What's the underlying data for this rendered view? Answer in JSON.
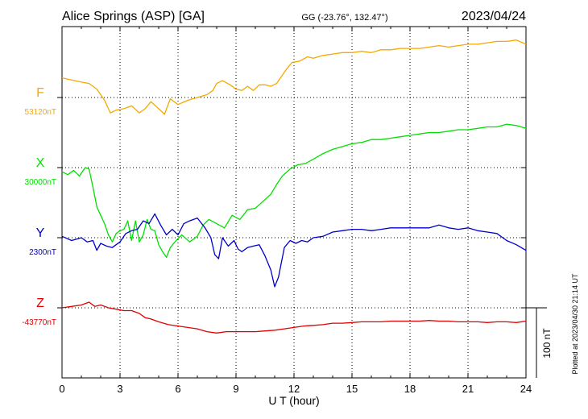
{
  "header": {
    "station": "Alice Springs (ASP)  [GA]",
    "coords": "GG (-23.76°, 132.47°)",
    "date": "2023/04/24"
  },
  "footer": {
    "xlabel": "U T (hour)",
    "plotted": "Plotted at 2023/04/30 21:14 UT"
  },
  "scale_bar": {
    "label": "100 nT",
    "value": 100
  },
  "chart_data": {
    "type": "line",
    "title": "Alice Springs (ASP)  [GA]",
    "xlabel": "U T (hour)",
    "ylabel": "",
    "xlim": [
      0,
      24
    ],
    "x_ticks": [
      "0",
      "3",
      "6",
      "9",
      "12",
      "15",
      "18",
      "21",
      "24"
    ],
    "grid": true,
    "colors": {
      "F": "#f5a800",
      "X": "#00e000",
      "Y": "#0000cc",
      "Z": "#e00000"
    },
    "series": [
      {
        "name": "F",
        "baseline_label": "53120nT",
        "x": [
          0,
          0.5,
          1.0,
          1.4,
          1.8,
          2.2,
          2.5,
          2.8,
          3.2,
          3.6,
          4.0,
          4.3,
          4.6,
          5.0,
          5.3,
          5.6,
          6.0,
          6.5,
          7.0,
          7.5,
          7.8,
          8.0,
          8.3,
          8.7,
          9.0,
          9.3,
          9.6,
          9.9,
          10.2,
          10.5,
          10.8,
          11.1,
          11.3,
          11.6,
          11.9,
          12.3,
          12.7,
          13.0,
          13.5,
          14.0,
          14.5,
          15.0,
          15.5,
          16.0,
          16.5,
          17.0,
          17.5,
          18.0,
          18.5,
          19.0,
          19.5,
          20.0,
          20.5,
          21.0,
          21.5,
          22.0,
          22.5,
          23.0,
          23.5,
          24.0
        ],
        "values": [
          28,
          25,
          22,
          20,
          12,
          -4,
          -22,
          -18,
          -16,
          -12,
          -22,
          -16,
          -6,
          -16,
          -24,
          -2,
          -10,
          -4,
          0,
          4,
          10,
          20,
          24,
          18,
          12,
          10,
          16,
          10,
          18,
          18,
          16,
          20,
          28,
          40,
          50,
          52,
          58,
          56,
          60,
          62,
          64,
          64,
          66,
          64,
          68,
          68,
          70,
          70,
          70,
          72,
          74,
          72,
          74,
          76,
          76,
          78,
          80,
          80,
          82,
          76
        ]
      },
      {
        "name": "X",
        "baseline_label": "30000nT",
        "x": [
          0,
          0.3,
          0.6,
          0.9,
          1.2,
          1.4,
          1.6,
          1.8,
          2.0,
          2.2,
          2.4,
          2.6,
          2.8,
          3.0,
          3.2,
          3.4,
          3.6,
          3.8,
          4.0,
          4.2,
          4.4,
          4.6,
          4.8,
          5.0,
          5.2,
          5.4,
          5.6,
          5.9,
          6.2,
          6.6,
          7.0,
          7.3,
          7.6,
          8.0,
          8.4,
          8.8,
          9.2,
          9.6,
          10.0,
          10.4,
          10.8,
          11.1,
          11.4,
          11.8,
          12.2,
          12.6,
          13.0,
          13.5,
          14.0,
          14.5,
          15.0,
          15.5,
          16.0,
          16.5,
          17.0,
          17.5,
          18.0,
          18.5,
          19.0,
          19.5,
          20.0,
          20.5,
          21.0,
          21.5,
          22.0,
          22.5,
          23.0,
          23.5,
          24.0
        ],
        "values": [
          -6,
          -10,
          -4,
          -12,
          0,
          -2,
          -28,
          -56,
          -68,
          -80,
          -96,
          -106,
          -94,
          -90,
          -88,
          -76,
          -104,
          -76,
          -106,
          -96,
          -74,
          -88,
          -90,
          -110,
          -120,
          -128,
          -114,
          -104,
          -96,
          -106,
          -98,
          -82,
          -74,
          -80,
          -86,
          -68,
          -74,
          -60,
          -58,
          -48,
          -38,
          -24,
          -12,
          -2,
          4,
          6,
          12,
          20,
          26,
          30,
          34,
          36,
          40,
          40,
          42,
          44,
          46,
          48,
          50,
          50,
          52,
          54,
          54,
          56,
          58,
          58,
          62,
          60,
          56
        ]
      },
      {
        "name": "Y",
        "baseline_label": "2300nT",
        "x": [
          0,
          0.5,
          1.0,
          1.3,
          1.6,
          1.8,
          2.0,
          2.3,
          2.6,
          3.0,
          3.3,
          3.6,
          3.9,
          4.2,
          4.5,
          4.8,
          5.1,
          5.4,
          5.7,
          6.0,
          6.3,
          6.6,
          7.0,
          7.4,
          7.7,
          7.9,
          8.1,
          8.3,
          8.6,
          8.9,
          9.1,
          9.3,
          9.6,
          9.9,
          10.2,
          10.5,
          10.8,
          11.0,
          11.2,
          11.5,
          11.8,
          12.1,
          12.4,
          12.7,
          13.0,
          13.5,
          14.0,
          14.5,
          15.0,
          15.5,
          16.0,
          16.5,
          17.0,
          17.5,
          18.0,
          18.5,
          19.0,
          19.5,
          20.0,
          20.5,
          21.0,
          21.5,
          22.0,
          22.5,
          23.0,
          23.5,
          24.0
        ],
        "values": [
          2,
          -4,
          0,
          -6,
          -4,
          -18,
          -8,
          -12,
          -14,
          -6,
          6,
          10,
          12,
          24,
          20,
          34,
          18,
          4,
          12,
          4,
          20,
          24,
          28,
          14,
          0,
          -24,
          -30,
          0,
          -12,
          -4,
          -16,
          -20,
          -14,
          -12,
          -10,
          -26,
          -46,
          -70,
          -56,
          -14,
          -4,
          -8,
          -4,
          -6,
          0,
          2,
          8,
          10,
          12,
          12,
          10,
          12,
          14,
          14,
          14,
          14,
          14,
          18,
          14,
          12,
          14,
          10,
          8,
          6,
          -4,
          -10,
          -18
        ]
      },
      {
        "name": "Z",
        "baseline_label": "-43770nT",
        "x": [
          0,
          0.5,
          1.0,
          1.4,
          1.7,
          2.0,
          2.4,
          2.8,
          3.2,
          3.6,
          4.0,
          4.3,
          4.6,
          5.0,
          5.5,
          6.0,
          6.5,
          7.0,
          7.5,
          8.0,
          8.5,
          9.0,
          9.5,
          10.0,
          10.5,
          11.0,
          11.5,
          12.0,
          12.5,
          13.0,
          13.5,
          14.0,
          14.5,
          15.0,
          15.5,
          16.0,
          16.5,
          17.0,
          17.5,
          18.0,
          18.5,
          19.0,
          19.5,
          20.0,
          20.5,
          21.0,
          21.5,
          22.0,
          22.5,
          23.0,
          23.5,
          24.0
        ],
        "values": [
          0,
          2,
          4,
          8,
          2,
          4,
          0,
          -2,
          -4,
          -4,
          -8,
          -14,
          -16,
          -20,
          -24,
          -26,
          -28,
          -30,
          -34,
          -36,
          -34,
          -34,
          -34,
          -34,
          -33,
          -32,
          -30,
          -28,
          -26,
          -25,
          -24,
          -22,
          -22,
          -21,
          -20,
          -20,
          -20,
          -19,
          -19,
          -19,
          -19,
          -18,
          -19,
          -19,
          -20,
          -20,
          -20,
          -21,
          -20,
          -20,
          -21,
          -19
        ]
      }
    ]
  }
}
